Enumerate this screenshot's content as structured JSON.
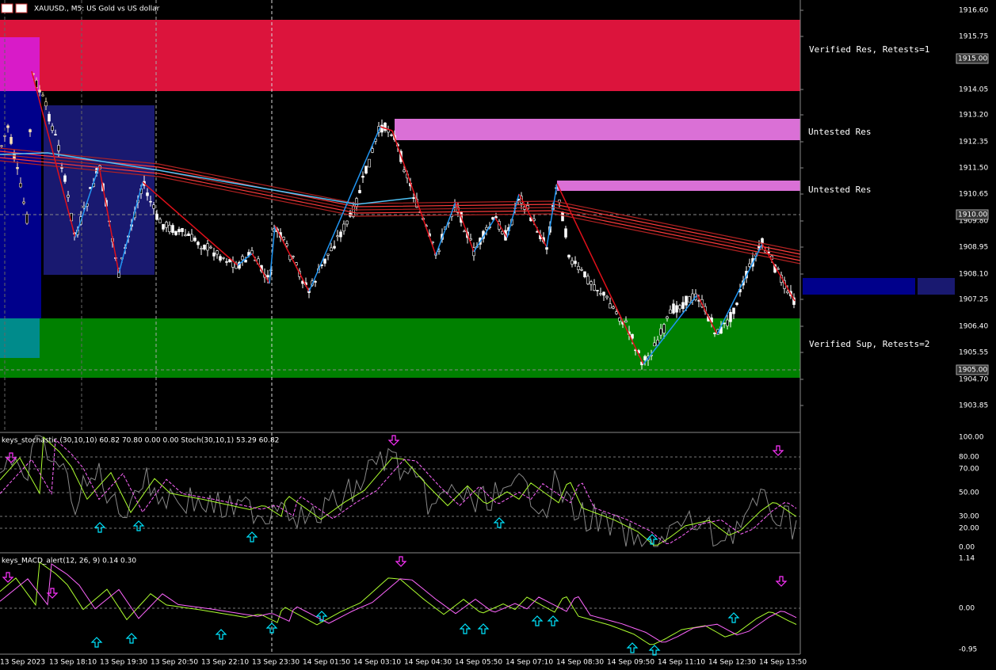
{
  "window_title": "XAUUSD., M5:  US Gold vs US dollar",
  "zones": {
    "res_verified": "Verified Res, Retests=1",
    "res_untested_1": "Untested Res",
    "res_untested_2": "Untested Res",
    "sup_verified": "Verified Sup, Retests=2"
  },
  "price_axis": {
    "labels": [
      "1916.60",
      "1915.75",
      "1914.05",
      "1913.20",
      "1912.35",
      "1911.50",
      "1910.65",
      "1909.80",
      "1908.95",
      "1908.10",
      "1907.25",
      "1906.40",
      "1905.55",
      "1904.70",
      "1903.85"
    ],
    "markers": [
      "1915.00",
      "1910.00",
      "1905.00"
    ]
  },
  "stochastic": {
    "header": "keys_stochastic (30,10,10) 60.82 70.80 0.00 0.00 Stoch(30,10,1) 53.29 60.82",
    "axis": [
      "100.00",
      "80.00",
      "70.00",
      "50.00",
      "30.00",
      "20.00",
      "0.00"
    ]
  },
  "macd": {
    "header": "keys_MACD_alert(12, 26, 9) 0.14 0.30",
    "axis": [
      "1.14",
      "0.00",
      "-0.95"
    ]
  },
  "time_axis": [
    "13 Sep 2023",
    "13 Sep 18:10",
    "13 Sep 19:30",
    "13 Sep 20:50",
    "13 Sep 22:10",
    "13 Sep 23:30",
    "14 Sep 01:50",
    "14 Sep 03:10",
    "14 Sep 04:30",
    "14 Sep 05:50",
    "14 Sep 07:10",
    "14 Sep 08:30",
    "14 Sep 09:50",
    "14 Sep 11:10",
    "14 Sep 12:30",
    "14 Sep 13:50"
  ]
}
